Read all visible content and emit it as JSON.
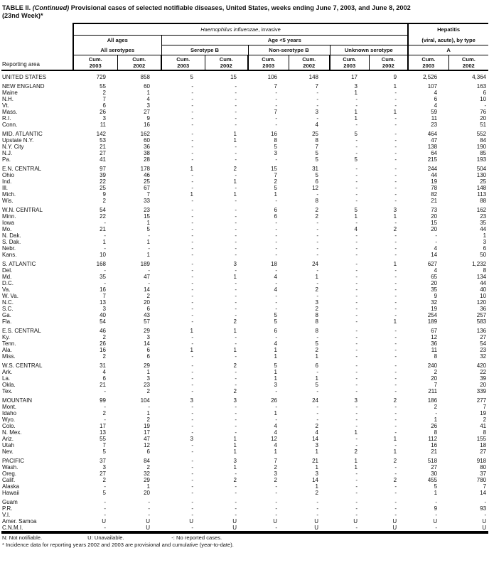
{
  "title": {
    "part1": "TABLE II. ",
    "part2": "(Continued)",
    "part3": " Provisional cases of selected notifiable diseases, United States, weeks ending June 7, 2003, and June 8, 2002",
    "line2": "(23nd Week)*"
  },
  "header": {
    "reporting_area": "Reporting area",
    "haemophilus_italic": "Haemophilus influenzae",
    "haemophilus_rest": ", invasive",
    "hepatitis": "Hepatitis",
    "all_ages": "All ages",
    "age_under5": "Age <5 years",
    "viral_acute": "(viral, acute), by type",
    "all_serotypes": "All serotypes",
    "serotype_b": "Serotype B",
    "non_serotype_b": "Non-serotype B",
    "unknown_serotype": "Unknown serotype",
    "type_a": "A",
    "cum": "Cum.",
    "year_2003": "2003",
    "year_2002": "2002"
  },
  "rows": [
    {
      "label": "UNITED STATES",
      "values": [
        "729",
        "858",
        "5",
        "15",
        "106",
        "148",
        "17",
        "9",
        "2,526",
        "4,364"
      ]
    },
    {
      "label": "NEW ENGLAND",
      "gap": true,
      "values": [
        "55",
        "60",
        "-",
        "-",
        "7",
        "7",
        "3",
        "1",
        "107",
        "163"
      ]
    },
    {
      "label": "Maine",
      "values": [
        "2",
        "1",
        "-",
        "-",
        "-",
        "-",
        "1",
        "-",
        "4",
        "6"
      ]
    },
    {
      "label": "N.H.",
      "values": [
        "7",
        "4",
        "-",
        "-",
        "-",
        "-",
        "-",
        "-",
        "6",
        "10"
      ]
    },
    {
      "label": "Vt.",
      "values": [
        "6",
        "3",
        "-",
        "-",
        "-",
        "-",
        "-",
        "-",
        "4",
        "-"
      ]
    },
    {
      "label": "Mass.",
      "values": [
        "26",
        "27",
        "-",
        "-",
        "7",
        "3",
        "1",
        "1",
        "59",
        "76"
      ]
    },
    {
      "label": "R.I.",
      "values": [
        "3",
        "9",
        "-",
        "-",
        "-",
        "-",
        "1",
        "-",
        "11",
        "20"
      ]
    },
    {
      "label": "Conn.",
      "values": [
        "11",
        "16",
        "-",
        "-",
        "-",
        "4",
        "-",
        "-",
        "23",
        "51"
      ]
    },
    {
      "label": "MID. ATLANTIC",
      "gap": true,
      "values": [
        "142",
        "162",
        "-",
        "1",
        "16",
        "25",
        "5",
        "-",
        "464",
        "552"
      ]
    },
    {
      "label": "Upstate N.Y.",
      "values": [
        "53",
        "60",
        "-",
        "1",
        "8",
        "8",
        "-",
        "-",
        "47",
        "84"
      ]
    },
    {
      "label": "N.Y. City",
      "values": [
        "21",
        "36",
        "-",
        "-",
        "5",
        "7",
        "-",
        "-",
        "138",
        "190"
      ]
    },
    {
      "label": "N.J.",
      "values": [
        "27",
        "38",
        "-",
        "-",
        "3",
        "5",
        "-",
        "-",
        "64",
        "85"
      ]
    },
    {
      "label": "Pa.",
      "values": [
        "41",
        "28",
        "-",
        "-",
        "-",
        "5",
        "5",
        "-",
        "215",
        "193"
      ]
    },
    {
      "label": "E.N. CENTRAL",
      "gap": true,
      "values": [
        "97",
        "178",
        "1",
        "2",
        "15",
        "31",
        "-",
        "-",
        "244",
        "504"
      ]
    },
    {
      "label": "Ohio",
      "values": [
        "39",
        "46",
        "-",
        "-",
        "7",
        "5",
        "-",
        "-",
        "44",
        "130"
      ]
    },
    {
      "label": "Ind.",
      "values": [
        "22",
        "25",
        "-",
        "1",
        "2",
        "6",
        "-",
        "-",
        "19",
        "25"
      ]
    },
    {
      "label": "Ill.",
      "values": [
        "25",
        "67",
        "-",
        "-",
        "5",
        "12",
        "-",
        "-",
        "78",
        "148"
      ]
    },
    {
      "label": "Mich.",
      "values": [
        "9",
        "7",
        "1",
        "1",
        "1",
        "-",
        "-",
        "-",
        "82",
        "113"
      ]
    },
    {
      "label": "Wis.",
      "values": [
        "2",
        "33",
        "-",
        "-",
        "-",
        "8",
        "-",
        "-",
        "21",
        "88"
      ]
    },
    {
      "label": "W.N. CENTRAL",
      "gap": true,
      "values": [
        "54",
        "23",
        "-",
        "-",
        "6",
        "2",
        "5",
        "3",
        "73",
        "162"
      ]
    },
    {
      "label": "Minn.",
      "values": [
        "22",
        "15",
        "-",
        "-",
        "6",
        "2",
        "1",
        "1",
        "20",
        "23"
      ]
    },
    {
      "label": "Iowa",
      "values": [
        "-",
        "1",
        "-",
        "-",
        "-",
        "-",
        "-",
        "-",
        "15",
        "35"
      ]
    },
    {
      "label": "Mo.",
      "values": [
        "21",
        "5",
        "-",
        "-",
        "-",
        "-",
        "4",
        "2",
        "20",
        "44"
      ]
    },
    {
      "label": "N. Dak.",
      "values": [
        "-",
        "-",
        "-",
        "-",
        "-",
        "-",
        "-",
        "-",
        "-",
        "1"
      ]
    },
    {
      "label": "S. Dak.",
      "values": [
        "1",
        "1",
        "-",
        "-",
        "-",
        "-",
        "-",
        "-",
        "-",
        "3"
      ]
    },
    {
      "label": "Nebr.",
      "values": [
        "-",
        "-",
        "-",
        "-",
        "-",
        "-",
        "-",
        "-",
        "4",
        "6"
      ]
    },
    {
      "label": "Kans.",
      "values": [
        "10",
        "1",
        "-",
        "-",
        "-",
        "-",
        "-",
        "-",
        "14",
        "50"
      ]
    },
    {
      "label": "S. ATLANTIC",
      "gap": true,
      "values": [
        "168",
        "189",
        "-",
        "3",
        "18",
        "24",
        "-",
        "1",
        "627",
        "1,232"
      ]
    },
    {
      "label": "Del.",
      "values": [
        "-",
        "-",
        "-",
        "-",
        "-",
        "-",
        "-",
        "-",
        "4",
        "8"
      ]
    },
    {
      "label": "Md.",
      "values": [
        "35",
        "47",
        "-",
        "1",
        "4",
        "1",
        "-",
        "-",
        "65",
        "134"
      ]
    },
    {
      "label": "D.C.",
      "values": [
        "-",
        "-",
        "-",
        "-",
        "-",
        "-",
        "-",
        "-",
        "20",
        "44"
      ]
    },
    {
      "label": "Va.",
      "values": [
        "16",
        "14",
        "-",
        "-",
        "4",
        "2",
        "-",
        "-",
        "35",
        "40"
      ]
    },
    {
      "label": "W. Va.",
      "values": [
        "7",
        "2",
        "-",
        "-",
        "-",
        "-",
        "-",
        "-",
        "9",
        "10"
      ]
    },
    {
      "label": "N.C.",
      "values": [
        "13",
        "20",
        "-",
        "-",
        "-",
        "3",
        "-",
        "-",
        "32",
        "120"
      ]
    },
    {
      "label": "S.C.",
      "values": [
        "3",
        "6",
        "-",
        "-",
        "-",
        "2",
        "-",
        "-",
        "19",
        "36"
      ]
    },
    {
      "label": "Ga.",
      "values": [
        "40",
        "43",
        "-",
        "-",
        "5",
        "8",
        "-",
        "-",
        "254",
        "257"
      ]
    },
    {
      "label": "Fla.",
      "values": [
        "54",
        "57",
        "-",
        "2",
        "5",
        "8",
        "-",
        "1",
        "189",
        "583"
      ]
    },
    {
      "label": "E.S. CENTRAL",
      "gap": true,
      "values": [
        "46",
        "29",
        "1",
        "1",
        "6",
        "8",
        "-",
        "-",
        "67",
        "136"
      ]
    },
    {
      "label": "Ky.",
      "values": [
        "2",
        "3",
        "-",
        "-",
        "-",
        "-",
        "-",
        "-",
        "12",
        "27"
      ]
    },
    {
      "label": "Tenn.",
      "values": [
        "26",
        "14",
        "-",
        "-",
        "4",
        "5",
        "-",
        "-",
        "36",
        "54"
      ]
    },
    {
      "label": "Ala.",
      "values": [
        "16",
        "6",
        "1",
        "1",
        "1",
        "2",
        "-",
        "-",
        "11",
        "23"
      ]
    },
    {
      "label": "Miss.",
      "values": [
        "2",
        "6",
        "-",
        "-",
        "1",
        "1",
        "-",
        "-",
        "8",
        "32"
      ]
    },
    {
      "label": "W.S. CENTRAL",
      "gap": true,
      "values": [
        "31",
        "29",
        "-",
        "2",
        "5",
        "6",
        "-",
        "-",
        "240",
        "420"
      ]
    },
    {
      "label": "Ark.",
      "values": [
        "4",
        "1",
        "-",
        "-",
        "1",
        "-",
        "-",
        "-",
        "2",
        "22"
      ]
    },
    {
      "label": "La.",
      "values": [
        "6",
        "3",
        "-",
        "-",
        "1",
        "1",
        "-",
        "-",
        "20",
        "39"
      ]
    },
    {
      "label": "Okla.",
      "values": [
        "21",
        "23",
        "-",
        "-",
        "3",
        "5",
        "-",
        "-",
        "7",
        "20"
      ]
    },
    {
      "label": "Tex.",
      "values": [
        "-",
        "2",
        "-",
        "2",
        "-",
        "-",
        "-",
        "-",
        "211",
        "339"
      ]
    },
    {
      "label": "MOUNTAIN",
      "gap": true,
      "values": [
        "99",
        "104",
        "3",
        "3",
        "26",
        "24",
        "3",
        "2",
        "186",
        "277"
      ]
    },
    {
      "label": "Mont.",
      "values": [
        "-",
        "-",
        "-",
        "-",
        "-",
        "-",
        "-",
        "-",
        "2",
        "7"
      ]
    },
    {
      "label": "Idaho",
      "values": [
        "2",
        "1",
        "-",
        "-",
        "1",
        "-",
        "-",
        "-",
        "-",
        "19"
      ]
    },
    {
      "label": "Wyo.",
      "values": [
        "-",
        "2",
        "-",
        "-",
        "-",
        "-",
        "-",
        "-",
        "1",
        "2"
      ]
    },
    {
      "label": "Colo.",
      "values": [
        "17",
        "19",
        "-",
        "-",
        "4",
        "2",
        "-",
        "-",
        "26",
        "41"
      ]
    },
    {
      "label": "N. Mex.",
      "values": [
        "13",
        "17",
        "-",
        "-",
        "4",
        "4",
        "1",
        "-",
        "8",
        "8"
      ]
    },
    {
      "label": "Ariz.",
      "values": [
        "55",
        "47",
        "3",
        "1",
        "12",
        "14",
        "-",
        "1",
        "112",
        "155"
      ]
    },
    {
      "label": "Utah",
      "values": [
        "7",
        "12",
        "-",
        "1",
        "4",
        "3",
        "-",
        "-",
        "16",
        "18"
      ]
    },
    {
      "label": "Nev.",
      "values": [
        "5",
        "6",
        "-",
        "1",
        "1",
        "1",
        "2",
        "1",
        "21",
        "27"
      ]
    },
    {
      "label": "PACIFIC",
      "gap": true,
      "values": [
        "37",
        "84",
        "-",
        "3",
        "7",
        "21",
        "1",
        "2",
        "518",
        "918"
      ]
    },
    {
      "label": "Wash.",
      "values": [
        "3",
        "2",
        "-",
        "1",
        "2",
        "1",
        "1",
        "-",
        "27",
        "80"
      ]
    },
    {
      "label": "Oreg.",
      "values": [
        "27",
        "32",
        "-",
        "-",
        "3",
        "3",
        "-",
        "-",
        "30",
        "37"
      ]
    },
    {
      "label": "Calif.",
      "values": [
        "2",
        "29",
        "-",
        "2",
        "2",
        "14",
        "-",
        "2",
        "455",
        "780"
      ]
    },
    {
      "label": "Alaska",
      "values": [
        "-",
        "1",
        "-",
        "-",
        "-",
        "1",
        "-",
        "-",
        "5",
        "7"
      ]
    },
    {
      "label": "Hawaii",
      "values": [
        "5",
        "20",
        "-",
        "-",
        "-",
        "2",
        "-",
        "-",
        "1",
        "14"
      ]
    },
    {
      "label": "Guam",
      "gap": true,
      "values": [
        "-",
        "-",
        "-",
        "-",
        "-",
        "-",
        "-",
        "-",
        "-",
        "-"
      ]
    },
    {
      "label": "P.R.",
      "values": [
        "-",
        "-",
        "-",
        "-",
        "-",
        "-",
        "-",
        "-",
        "9",
        "93"
      ]
    },
    {
      "label": "V.I.",
      "values": [
        "-",
        "-",
        "-",
        "-",
        "-",
        "-",
        "-",
        "-",
        "-",
        "-"
      ]
    },
    {
      "label": "Amer. Samoa",
      "values": [
        "U",
        "U",
        "U",
        "U",
        "U",
        "U",
        "U",
        "U",
        "U",
        "U"
      ]
    },
    {
      "label": "C.N.M.I.",
      "values": [
        "-",
        "U",
        "-",
        "U",
        "-",
        "U",
        "-",
        "U",
        "-",
        "U"
      ]
    }
  ],
  "footnotes": {
    "legend": [
      "N: Not notifiable.",
      "U: Unavailable.",
      "-: No reported cases."
    ],
    "note": "* Incidence data for reporting years 2002 and 2003 are provisional and cumulative (year-to-date)."
  }
}
